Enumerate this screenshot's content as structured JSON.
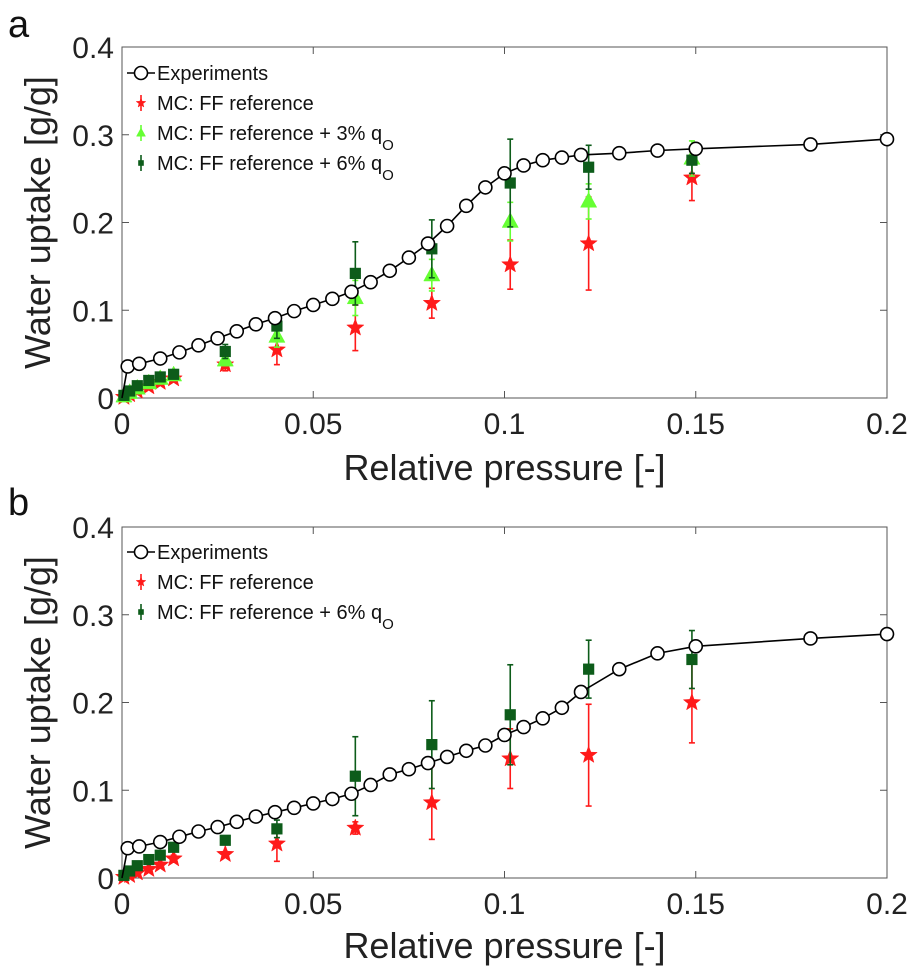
{
  "chart_data": [
    {
      "panel": "a",
      "type": "scatter",
      "xlabel": "Relative pressure [-]",
      "ylabel": "Water uptake [g/g]",
      "xlim": [
        0,
        0.2
      ],
      "ylim": [
        0,
        0.4
      ],
      "xticks": [
        "0",
        "0.05",
        "0.1",
        "0.15",
        "0.2"
      ],
      "yticks": [
        "0",
        "0.1",
        "0.2",
        "0.3",
        "0.4"
      ],
      "legend_position": "top-left",
      "series": [
        {
          "name": "Experiments",
          "kind": "line-open-circle",
          "color": "#000000",
          "x": [
            0.0,
            0.0015,
            0.0045,
            0.01,
            0.015,
            0.02,
            0.025,
            0.03,
            0.035,
            0.04,
            0.045,
            0.05,
            0.055,
            0.06,
            0.065,
            0.07,
            0.075,
            0.08,
            0.085,
            0.09,
            0.095,
            0.1,
            0.105,
            0.11,
            0.115,
            0.12,
            0.13,
            0.14,
            0.15,
            0.18,
            0.2
          ],
          "y": [
            0.0,
            0.036,
            0.039,
            0.045,
            0.052,
            0.06,
            0.068,
            0.076,
            0.084,
            0.091,
            0.099,
            0.106,
            0.113,
            0.121,
            0.132,
            0.145,
            0.16,
            0.176,
            0.196,
            0.219,
            0.24,
            0.256,
            0.265,
            0.271,
            0.274,
            0.277,
            0.279,
            0.282,
            0.284,
            0.289,
            0.295
          ]
        },
        {
          "name": "MC: FF reference",
          "kind": "star",
          "color": "#ff1a1a",
          "x": [
            0.0005,
            0.002,
            0.004,
            0.007,
            0.01,
            0.0135,
            0.027,
            0.0405,
            0.061,
            0.081,
            0.1015,
            0.122,
            0.149
          ],
          "y": [
            0.001,
            0.004,
            0.008,
            0.013,
            0.018,
            0.022,
            0.038,
            0.055,
            0.08,
            0.108,
            0.152,
            0.176,
            0.251
          ],
          "err": [
            0,
            0,
            0,
            0,
            0,
            0,
            0.007,
            0.017,
            0.026,
            0.017,
            0.028,
            0.053,
            0.026
          ]
        },
        {
          "name": "MC: FF reference + 3% q",
          "name_sub": "O",
          "kind": "triangle",
          "color": "#66ff33",
          "x": [
            0.0005,
            0.002,
            0.004,
            0.007,
            0.01,
            0.0135,
            0.027,
            0.0405,
            0.061,
            0.081,
            0.1015,
            0.122,
            0.149
          ],
          "y": [
            0.002,
            0.006,
            0.011,
            0.017,
            0.022,
            0.026,
            0.043,
            0.07,
            0.114,
            0.14,
            0.201,
            0.224,
            0.273
          ],
          "err": [
            0,
            0,
            0,
            0,
            0,
            0,
            0.006,
            0.012,
            0.02,
            0.018,
            0.022,
            0.02,
            0.02
          ]
        },
        {
          "name": "MC: FF reference + 6% q",
          "name_sub": "O",
          "kind": "square",
          "color": "#0d5c1a",
          "x": [
            0.0005,
            0.002,
            0.004,
            0.007,
            0.01,
            0.0135,
            0.027,
            0.0405,
            0.061,
            0.081,
            0.1015,
            0.122,
            0.149
          ],
          "y": [
            0.003,
            0.008,
            0.014,
            0.02,
            0.024,
            0.027,
            0.053,
            0.082,
            0.142,
            0.17,
            0.245,
            0.263,
            0.271
          ],
          "err": [
            0,
            0,
            0,
            0,
            0,
            0,
            0.008,
            0.014,
            0.036,
            0.033,
            0.05,
            0.025,
            0.015
          ]
        }
      ]
    },
    {
      "panel": "b",
      "type": "scatter",
      "xlabel": "Relative pressure [-]",
      "ylabel": "Water uptake [g/g]",
      "xlim": [
        0,
        0.2
      ],
      "ylim": [
        0,
        0.4
      ],
      "xticks": [
        "0",
        "0.05",
        "0.1",
        "0.15",
        "0.2"
      ],
      "yticks": [
        "0",
        "0.1",
        "0.2",
        "0.3",
        "0.4"
      ],
      "legend_position": "top-left",
      "series": [
        {
          "name": "Experiments",
          "kind": "line-open-circle",
          "color": "#000000",
          "x": [
            0.0,
            0.0015,
            0.0045,
            0.01,
            0.015,
            0.02,
            0.025,
            0.03,
            0.035,
            0.04,
            0.045,
            0.05,
            0.055,
            0.06,
            0.065,
            0.07,
            0.075,
            0.08,
            0.085,
            0.09,
            0.095,
            0.1,
            0.105,
            0.11,
            0.115,
            0.12,
            0.13,
            0.14,
            0.15,
            0.18,
            0.2
          ],
          "y": [
            0.0,
            0.034,
            0.036,
            0.041,
            0.047,
            0.053,
            0.058,
            0.064,
            0.07,
            0.075,
            0.08,
            0.085,
            0.09,
            0.096,
            0.106,
            0.118,
            0.124,
            0.131,
            0.138,
            0.145,
            0.151,
            0.163,
            0.172,
            0.182,
            0.194,
            0.212,
            0.238,
            0.256,
            0.264,
            0.273,
            0.278
          ]
        },
        {
          "name": "MC: FF reference",
          "kind": "star",
          "color": "#ff1a1a",
          "x": [
            0.0005,
            0.002,
            0.004,
            0.007,
            0.01,
            0.0135,
            0.027,
            0.0405,
            0.061,
            0.081,
            0.1015,
            0.122,
            0.149
          ],
          "y": [
            0.001,
            0.003,
            0.006,
            0.01,
            0.015,
            0.022,
            0.027,
            0.039,
            0.057,
            0.086,
            0.136,
            0.14,
            0.2
          ],
          "err": [
            0,
            0,
            0,
            0,
            0,
            0.004,
            0.003,
            0.02,
            0.007,
            0.042,
            0.034,
            0.058,
            0.046
          ]
        },
        {
          "name": "MC: FF reference + 6% q",
          "name_sub": "O",
          "kind": "square",
          "color": "#0d5c1a",
          "x": [
            0.0005,
            0.002,
            0.004,
            0.007,
            0.01,
            0.0135,
            0.027,
            0.0405,
            0.061,
            0.081,
            0.1015,
            0.122,
            0.149
          ],
          "y": [
            0.003,
            0.008,
            0.014,
            0.021,
            0.026,
            0.035,
            0.043,
            0.056,
            0.116,
            0.152,
            0.186,
            0.238,
            0.249
          ],
          "err": [
            0,
            0,
            0,
            0,
            0,
            0,
            0.004,
            0.01,
            0.045,
            0.05,
            0.057,
            0.033,
            0.033
          ]
        }
      ]
    }
  ]
}
